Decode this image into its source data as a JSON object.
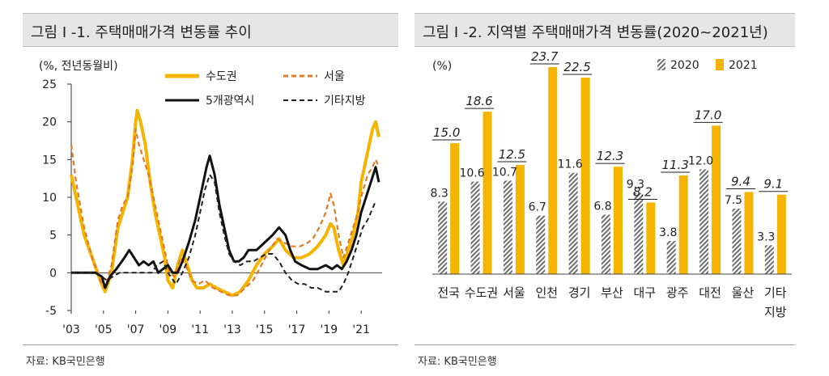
{
  "left_panel": {
    "title": "그림 I -1. 주택매매가격 변동률 추이",
    "source": "자료: KB국민은행"
  },
  "right_panel": {
    "title": "그림 I -2. 지역별 주택매매가격 변동률(2020~2021년)",
    "source": "자료: KB국민은행"
  },
  "chart_data": [
    {
      "type": "line",
      "unit_label": "(%, 전년동월비)",
      "ylim": [
        -5,
        25
      ],
      "y_ticks": [
        -5,
        0,
        5,
        10,
        15,
        20,
        25
      ],
      "x_ticks": [
        "'03",
        "'05",
        "'07",
        "'09",
        "'11",
        "'13",
        "'15",
        "'17",
        "'19",
        "'21"
      ],
      "legend": [
        "수도권",
        "서울",
        "5개광역시",
        "기타지방"
      ],
      "series": [
        {
          "name": "수도권",
          "color": "#f5b400",
          "style": "solid-thick",
          "points": [
            [
              2003.0,
              13
            ],
            [
              2003.3,
              10
            ],
            [
              2003.8,
              5
            ],
            [
              2004.3,
              2
            ],
            [
              2004.8,
              -1
            ],
            [
              2005.1,
              -2.5
            ],
            [
              2005.5,
              0
            ],
            [
              2005.9,
              6
            ],
            [
              2006.2,
              8
            ],
            [
              2006.5,
              10
            ],
            [
              2006.8,
              15
            ],
            [
              2007.0,
              20
            ],
            [
              2007.1,
              21.5
            ],
            [
              2007.3,
              20
            ],
            [
              2007.6,
              17
            ],
            [
              2007.9,
              12
            ],
            [
              2008.2,
              8
            ],
            [
              2008.5,
              5
            ],
            [
              2008.8,
              2
            ],
            [
              2009.0,
              -1
            ],
            [
              2009.3,
              -2
            ],
            [
              2009.6,
              1
            ],
            [
              2009.9,
              3
            ],
            [
              2010.2,
              1
            ],
            [
              2010.5,
              -1
            ],
            [
              2010.8,
              -2
            ],
            [
              2011.2,
              -2
            ],
            [
              2011.6,
              -1.5
            ],
            [
              2012.0,
              -2
            ],
            [
              2012.5,
              -2.5
            ],
            [
              2013.0,
              -3
            ],
            [
              2013.5,
              -2.5
            ],
            [
              2014.0,
              -1
            ],
            [
              2014.5,
              1
            ],
            [
              2015.0,
              2.5
            ],
            [
              2015.5,
              3.5
            ],
            [
              2015.9,
              4.5
            ],
            [
              2016.3,
              3
            ],
            [
              2016.8,
              2
            ],
            [
              2017.3,
              2
            ],
            [
              2017.8,
              2.5
            ],
            [
              2018.3,
              3.5
            ],
            [
              2018.8,
              5
            ],
            [
              2019.1,
              6.5
            ],
            [
              2019.3,
              6
            ],
            [
              2019.6,
              3
            ],
            [
              2019.9,
              1
            ],
            [
              2020.2,
              3
            ],
            [
              2020.5,
              5
            ],
            [
              2020.8,
              8
            ],
            [
              2021.0,
              12
            ],
            [
              2021.4,
              16
            ],
            [
              2021.7,
              19
            ],
            [
              2021.9,
              20
            ],
            [
              2022.1,
              18
            ]
          ]
        },
        {
          "name": "서울",
          "color": "#e07b2a",
          "style": "dashed",
          "points": [
            [
              2003.0,
              17
            ],
            [
              2003.3,
              12
            ],
            [
              2003.8,
              6
            ],
            [
              2004.3,
              2
            ],
            [
              2004.8,
              -1
            ],
            [
              2005.1,
              -2
            ],
            [
              2005.5,
              1
            ],
            [
              2005.9,
              7
            ],
            [
              2006.2,
              9
            ],
            [
              2006.5,
              10
            ],
            [
              2006.8,
              14
            ],
            [
              2007.0,
              19
            ],
            [
              2007.2,
              17
            ],
            [
              2007.5,
              15
            ],
            [
              2007.8,
              13
            ],
            [
              2008.1,
              10
            ],
            [
              2008.5,
              6
            ],
            [
              2008.8,
              3
            ],
            [
              2009.1,
              0
            ],
            [
              2009.4,
              -0.5
            ],
            [
              2009.8,
              2
            ],
            [
              2010.1,
              1
            ],
            [
              2010.5,
              -1
            ],
            [
              2010.9,
              -1.5
            ],
            [
              2011.3,
              -1
            ],
            [
              2011.8,
              -2
            ],
            [
              2012.3,
              -2.5
            ],
            [
              2012.8,
              -3
            ],
            [
              2013.3,
              -3
            ],
            [
              2013.8,
              -2
            ],
            [
              2014.3,
              -1
            ],
            [
              2014.8,
              1
            ],
            [
              2015.3,
              3
            ],
            [
              2015.8,
              4.5
            ],
            [
              2016.2,
              4
            ],
            [
              2016.7,
              3.5
            ],
            [
              2017.2,
              3.5
            ],
            [
              2017.7,
              4
            ],
            [
              2018.0,
              4.5
            ],
            [
              2018.4,
              6
            ],
            [
              2018.8,
              8
            ],
            [
              2019.1,
              10.5
            ],
            [
              2019.3,
              9
            ],
            [
              2019.6,
              5
            ],
            [
              2019.9,
              2
            ],
            [
              2020.2,
              4
            ],
            [
              2020.5,
              6
            ],
            [
              2020.8,
              8
            ],
            [
              2021.0,
              10
            ],
            [
              2021.4,
              13
            ],
            [
              2021.7,
              14
            ],
            [
              2021.9,
              15
            ],
            [
              2022.1,
              14
            ]
          ]
        },
        {
          "name": "5개광역시",
          "color": "#111111",
          "style": "solid",
          "points": [
            [
              2003.0,
              0
            ],
            [
              2003.5,
              0
            ],
            [
              2004.0,
              0
            ],
            [
              2004.5,
              0
            ],
            [
              2004.9,
              -0.5
            ],
            [
              2005.1,
              -2
            ],
            [
              2005.4,
              -0.5
            ],
            [
              2005.8,
              0.5
            ],
            [
              2006.3,
              2
            ],
            [
              2006.6,
              3
            ],
            [
              2006.9,
              2
            ],
            [
              2007.2,
              1
            ],
            [
              2007.5,
              1.5
            ],
            [
              2007.8,
              1
            ],
            [
              2008.1,
              1.5
            ],
            [
              2008.4,
              0
            ],
            [
              2008.7,
              0.5
            ],
            [
              2009.0,
              1
            ],
            [
              2009.3,
              0
            ],
            [
              2009.6,
              0
            ],
            [
              2009.9,
              1.5
            ],
            [
              2010.3,
              4
            ],
            [
              2010.7,
              7
            ],
            [
              2011.1,
              11
            ],
            [
              2011.4,
              14
            ],
            [
              2011.6,
              15.5
            ],
            [
              2011.9,
              13
            ],
            [
              2012.2,
              9
            ],
            [
              2012.5,
              6
            ],
            [
              2012.8,
              3
            ],
            [
              2013.1,
              1.5
            ],
            [
              2013.4,
              1.5
            ],
            [
              2013.7,
              2
            ],
            [
              2014.0,
              3
            ],
            [
              2014.5,
              3
            ],
            [
              2015.0,
              4
            ],
            [
              2015.5,
              5
            ],
            [
              2015.9,
              6
            ],
            [
              2016.3,
              5
            ],
            [
              2016.6,
              3
            ],
            [
              2016.9,
              1.5
            ],
            [
              2017.3,
              1
            ],
            [
              2017.8,
              0.5
            ],
            [
              2018.3,
              0.5
            ],
            [
              2018.8,
              1
            ],
            [
              2019.2,
              0.5
            ],
            [
              2019.5,
              1
            ],
            [
              2019.8,
              0.5
            ],
            [
              2020.1,
              1.5
            ],
            [
              2020.4,
              3
            ],
            [
              2020.7,
              5
            ],
            [
              2021.0,
              8
            ],
            [
              2021.3,
              10
            ],
            [
              2021.6,
              12
            ],
            [
              2021.9,
              14
            ],
            [
              2022.1,
              12
            ]
          ]
        },
        {
          "name": "기타지방",
          "color": "#222222",
          "style": "dashed",
          "points": [
            [
              2003.0,
              0
            ],
            [
              2003.5,
              0
            ],
            [
              2004.0,
              0
            ],
            [
              2004.5,
              0
            ],
            [
              2004.9,
              -0.5
            ],
            [
              2005.2,
              -1
            ],
            [
              2005.6,
              -0.5
            ],
            [
              2006.0,
              0
            ],
            [
              2006.5,
              0
            ],
            [
              2007.0,
              0
            ],
            [
              2007.5,
              0
            ],
            [
              2008.0,
              0
            ],
            [
              2008.3,
              1
            ],
            [
              2008.7,
              1.5
            ],
            [
              2009.0,
              0
            ],
            [
              2009.5,
              -1.5
            ],
            [
              2009.9,
              0
            ],
            [
              2010.3,
              2
            ],
            [
              2010.7,
              5
            ],
            [
              2011.0,
              8
            ],
            [
              2011.3,
              11
            ],
            [
              2011.6,
              13
            ],
            [
              2011.9,
              12
            ],
            [
              2012.2,
              8
            ],
            [
              2012.5,
              5
            ],
            [
              2012.8,
              2.5
            ],
            [
              2013.1,
              1.5
            ],
            [
              2013.5,
              1
            ],
            [
              2013.9,
              1.5
            ],
            [
              2014.3,
              1.5
            ],
            [
              2014.7,
              2
            ],
            [
              2015.1,
              2.5
            ],
            [
              2015.5,
              2.5
            ],
            [
              2015.9,
              1.5
            ],
            [
              2016.3,
              0
            ],
            [
              2016.7,
              -1
            ],
            [
              2017.1,
              -1.5
            ],
            [
              2017.5,
              -1.5
            ],
            [
              2017.9,
              -2
            ],
            [
              2018.3,
              -2
            ],
            [
              2018.8,
              -2.5
            ],
            [
              2019.2,
              -2.5
            ],
            [
              2019.6,
              -2.5
            ],
            [
              2019.9,
              -1.5
            ],
            [
              2020.2,
              0
            ],
            [
              2020.5,
              2
            ],
            [
              2020.8,
              4
            ],
            [
              2021.1,
              6
            ],
            [
              2021.4,
              7
            ],
            [
              2021.7,
              8.5
            ],
            [
              2021.9,
              9.5
            ]
          ]
        }
      ]
    },
    {
      "type": "bar",
      "unit_label": "(%)",
      "categories": [
        "전국",
        "수도권",
        "서울",
        "인천",
        "경기",
        "부산",
        "대구",
        "광주",
        "대전",
        "울산",
        "기타 지방"
      ],
      "legend": [
        "2020",
        "2021"
      ],
      "series": [
        {
          "name": "2020",
          "color": "#8a8a8a",
          "pattern": "hatched",
          "values": [
            8.3,
            10.6,
            10.7,
            6.7,
            11.6,
            6.8,
            9.3,
            3.8,
            12.0,
            7.5,
            3.3
          ],
          "labels": [
            "8.3",
            "10.6",
            "10.7",
            "6.7",
            "11.6",
            "6.8",
            "9.3",
            "3.8",
            "12.0",
            "7.5",
            "3.3"
          ]
        },
        {
          "name": "2021",
          "color": "#f5b400",
          "values": [
            15.0,
            18.6,
            12.5,
            23.7,
            22.5,
            12.3,
            8.2,
            11.3,
            17.0,
            9.4,
            9.1
          ],
          "labels": [
            "15.0",
            "18.6",
            "12.5",
            "23.7",
            "22.5",
            "12.3",
            "8.2",
            "11.3",
            "17.0",
            "9.4",
            "9.1"
          ]
        }
      ]
    }
  ]
}
